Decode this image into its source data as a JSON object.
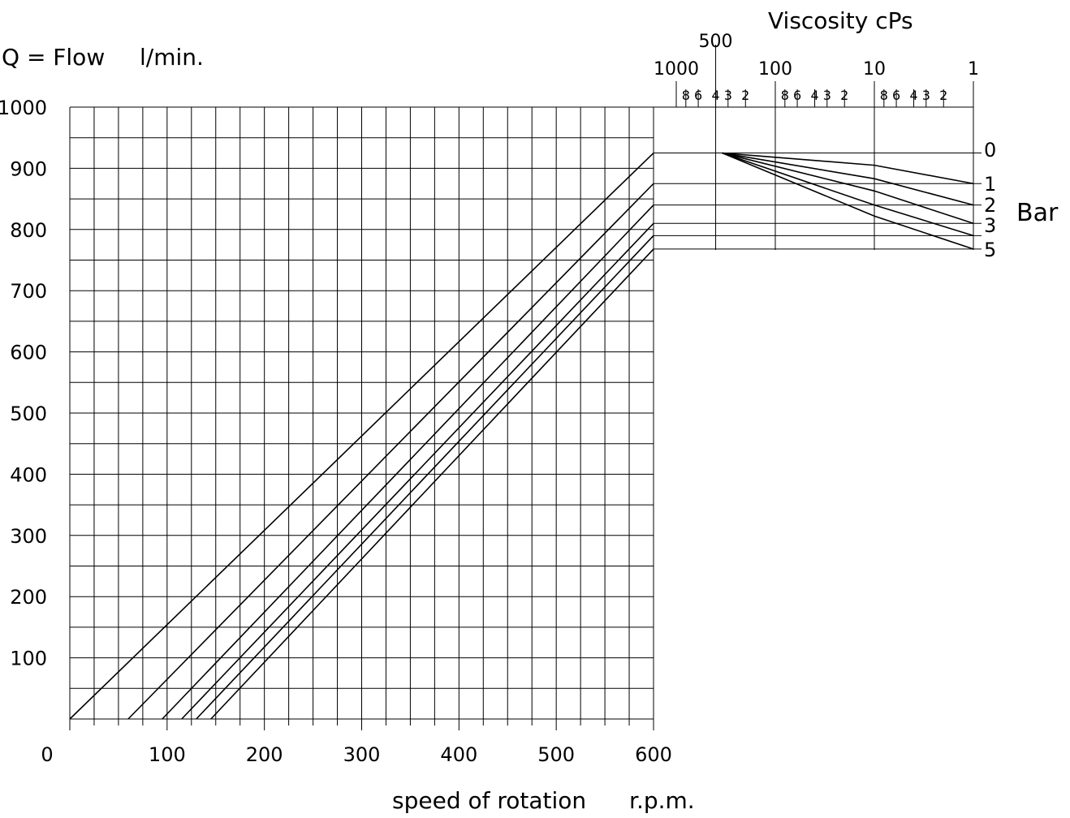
{
  "chart_data": {
    "type": "line",
    "ylabel": "Q = Flow",
    "yunit": "l/min.",
    "xlabel": "speed of rotation",
    "xunit": "r.p.m.",
    "xlim": [
      0,
      600
    ],
    "ylim": [
      0,
      1000
    ],
    "x_ticks": [
      0,
      100,
      200,
      300,
      400,
      500,
      600
    ],
    "y_ticks": [
      100,
      200,
      300,
      400,
      500,
      600,
      700,
      800,
      900,
      1000
    ],
    "grid": true,
    "series": [
      {
        "name": "0",
        "x": [
          0,
          600
        ],
        "y": [
          0,
          925
        ]
      },
      {
        "name": "1",
        "x": [
          60,
          600
        ],
        "y": [
          0,
          875
        ]
      },
      {
        "name": "2",
        "x": [
          95,
          600
        ],
        "y": [
          0,
          840
        ]
      },
      {
        "name": "3",
        "x": [
          115,
          600
        ],
        "y": [
          0,
          810
        ]
      },
      {
        "name": "",
        "x": [
          130,
          600
        ],
        "y": [
          0,
          790
        ]
      },
      {
        "name": "5",
        "x": [
          145,
          600
        ],
        "y": [
          0,
          768
        ]
      }
    ],
    "viscosity_nomogram": {
      "title": "Viscosity cPs",
      "scale": "log",
      "decade_labels": [
        "1000",
        "100",
        "10",
        "1"
      ],
      "marked_value_label": "500",
      "minor_tick_labels": [
        "8",
        "6",
        "4",
        "3",
        "2"
      ],
      "pressure_unit": "Bar",
      "pressure_labels": [
        "0",
        "1",
        "2",
        "3",
        "5"
      ],
      "pressure_lines": [
        {
          "pressure": "0",
          "flow": 925,
          "at_viscosity_1": 925
        },
        {
          "pressure": "1",
          "flow": 875,
          "at_viscosity_10": 905,
          "at_viscosity_1": 875
        },
        {
          "pressure": "2",
          "flow": 840,
          "at_viscosity_10": 883,
          "at_viscosity_1": 840
        },
        {
          "pressure": "3",
          "flow": 810,
          "at_viscosity_10": 863,
          "at_viscosity_1": 810
        },
        {
          "pressure": "",
          "flow": 790,
          "at_viscosity_10": 840,
          "at_viscosity_1": 790
        },
        {
          "pressure": "5",
          "flow": 768,
          "at_viscosity_10": 822,
          "at_viscosity_1": 768
        }
      ],
      "origin_viscosity": 400
    }
  }
}
